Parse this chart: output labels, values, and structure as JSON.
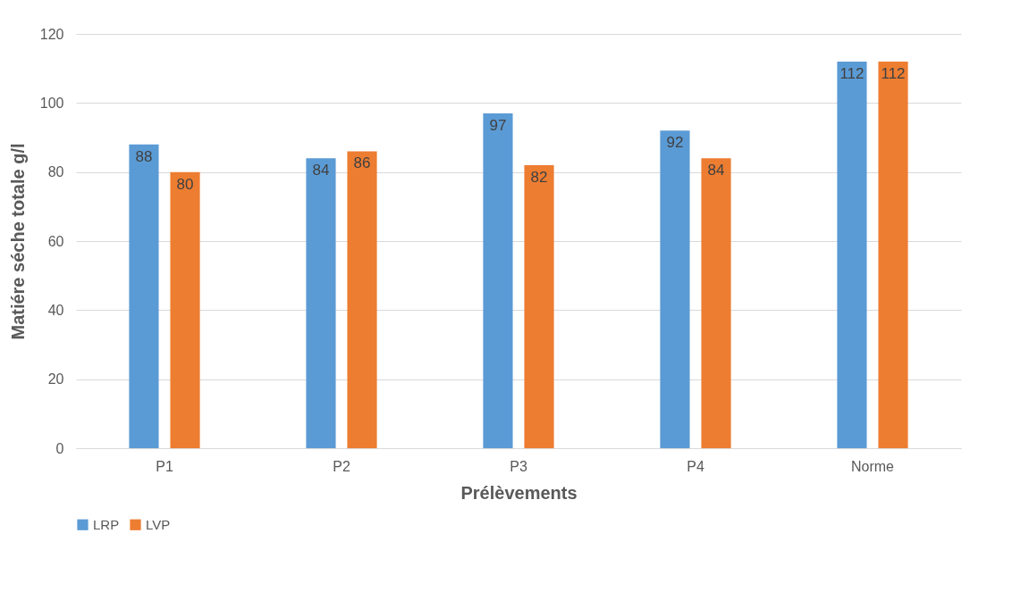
{
  "chart_data": {
    "type": "bar",
    "xlabel": "Prélèvements",
    "ylabel": "Matiére séche totale g/l",
    "categories": [
      "P1",
      "P2",
      "P3",
      "P4",
      "Norme"
    ],
    "series": [
      {
        "name": "LRP",
        "color": "#5b9bd5",
        "values": [
          88,
          84,
          97,
          92,
          112
        ]
      },
      {
        "name": "LVP",
        "color": "#ed7d31",
        "values": [
          80,
          86,
          82,
          84,
          112
        ]
      }
    ],
    "ylim": [
      0,
      120
    ],
    "yticks": [
      0,
      20,
      40,
      60,
      80,
      100,
      120
    ],
    "grid": "y",
    "legend": "bottom",
    "data_labels": true
  }
}
